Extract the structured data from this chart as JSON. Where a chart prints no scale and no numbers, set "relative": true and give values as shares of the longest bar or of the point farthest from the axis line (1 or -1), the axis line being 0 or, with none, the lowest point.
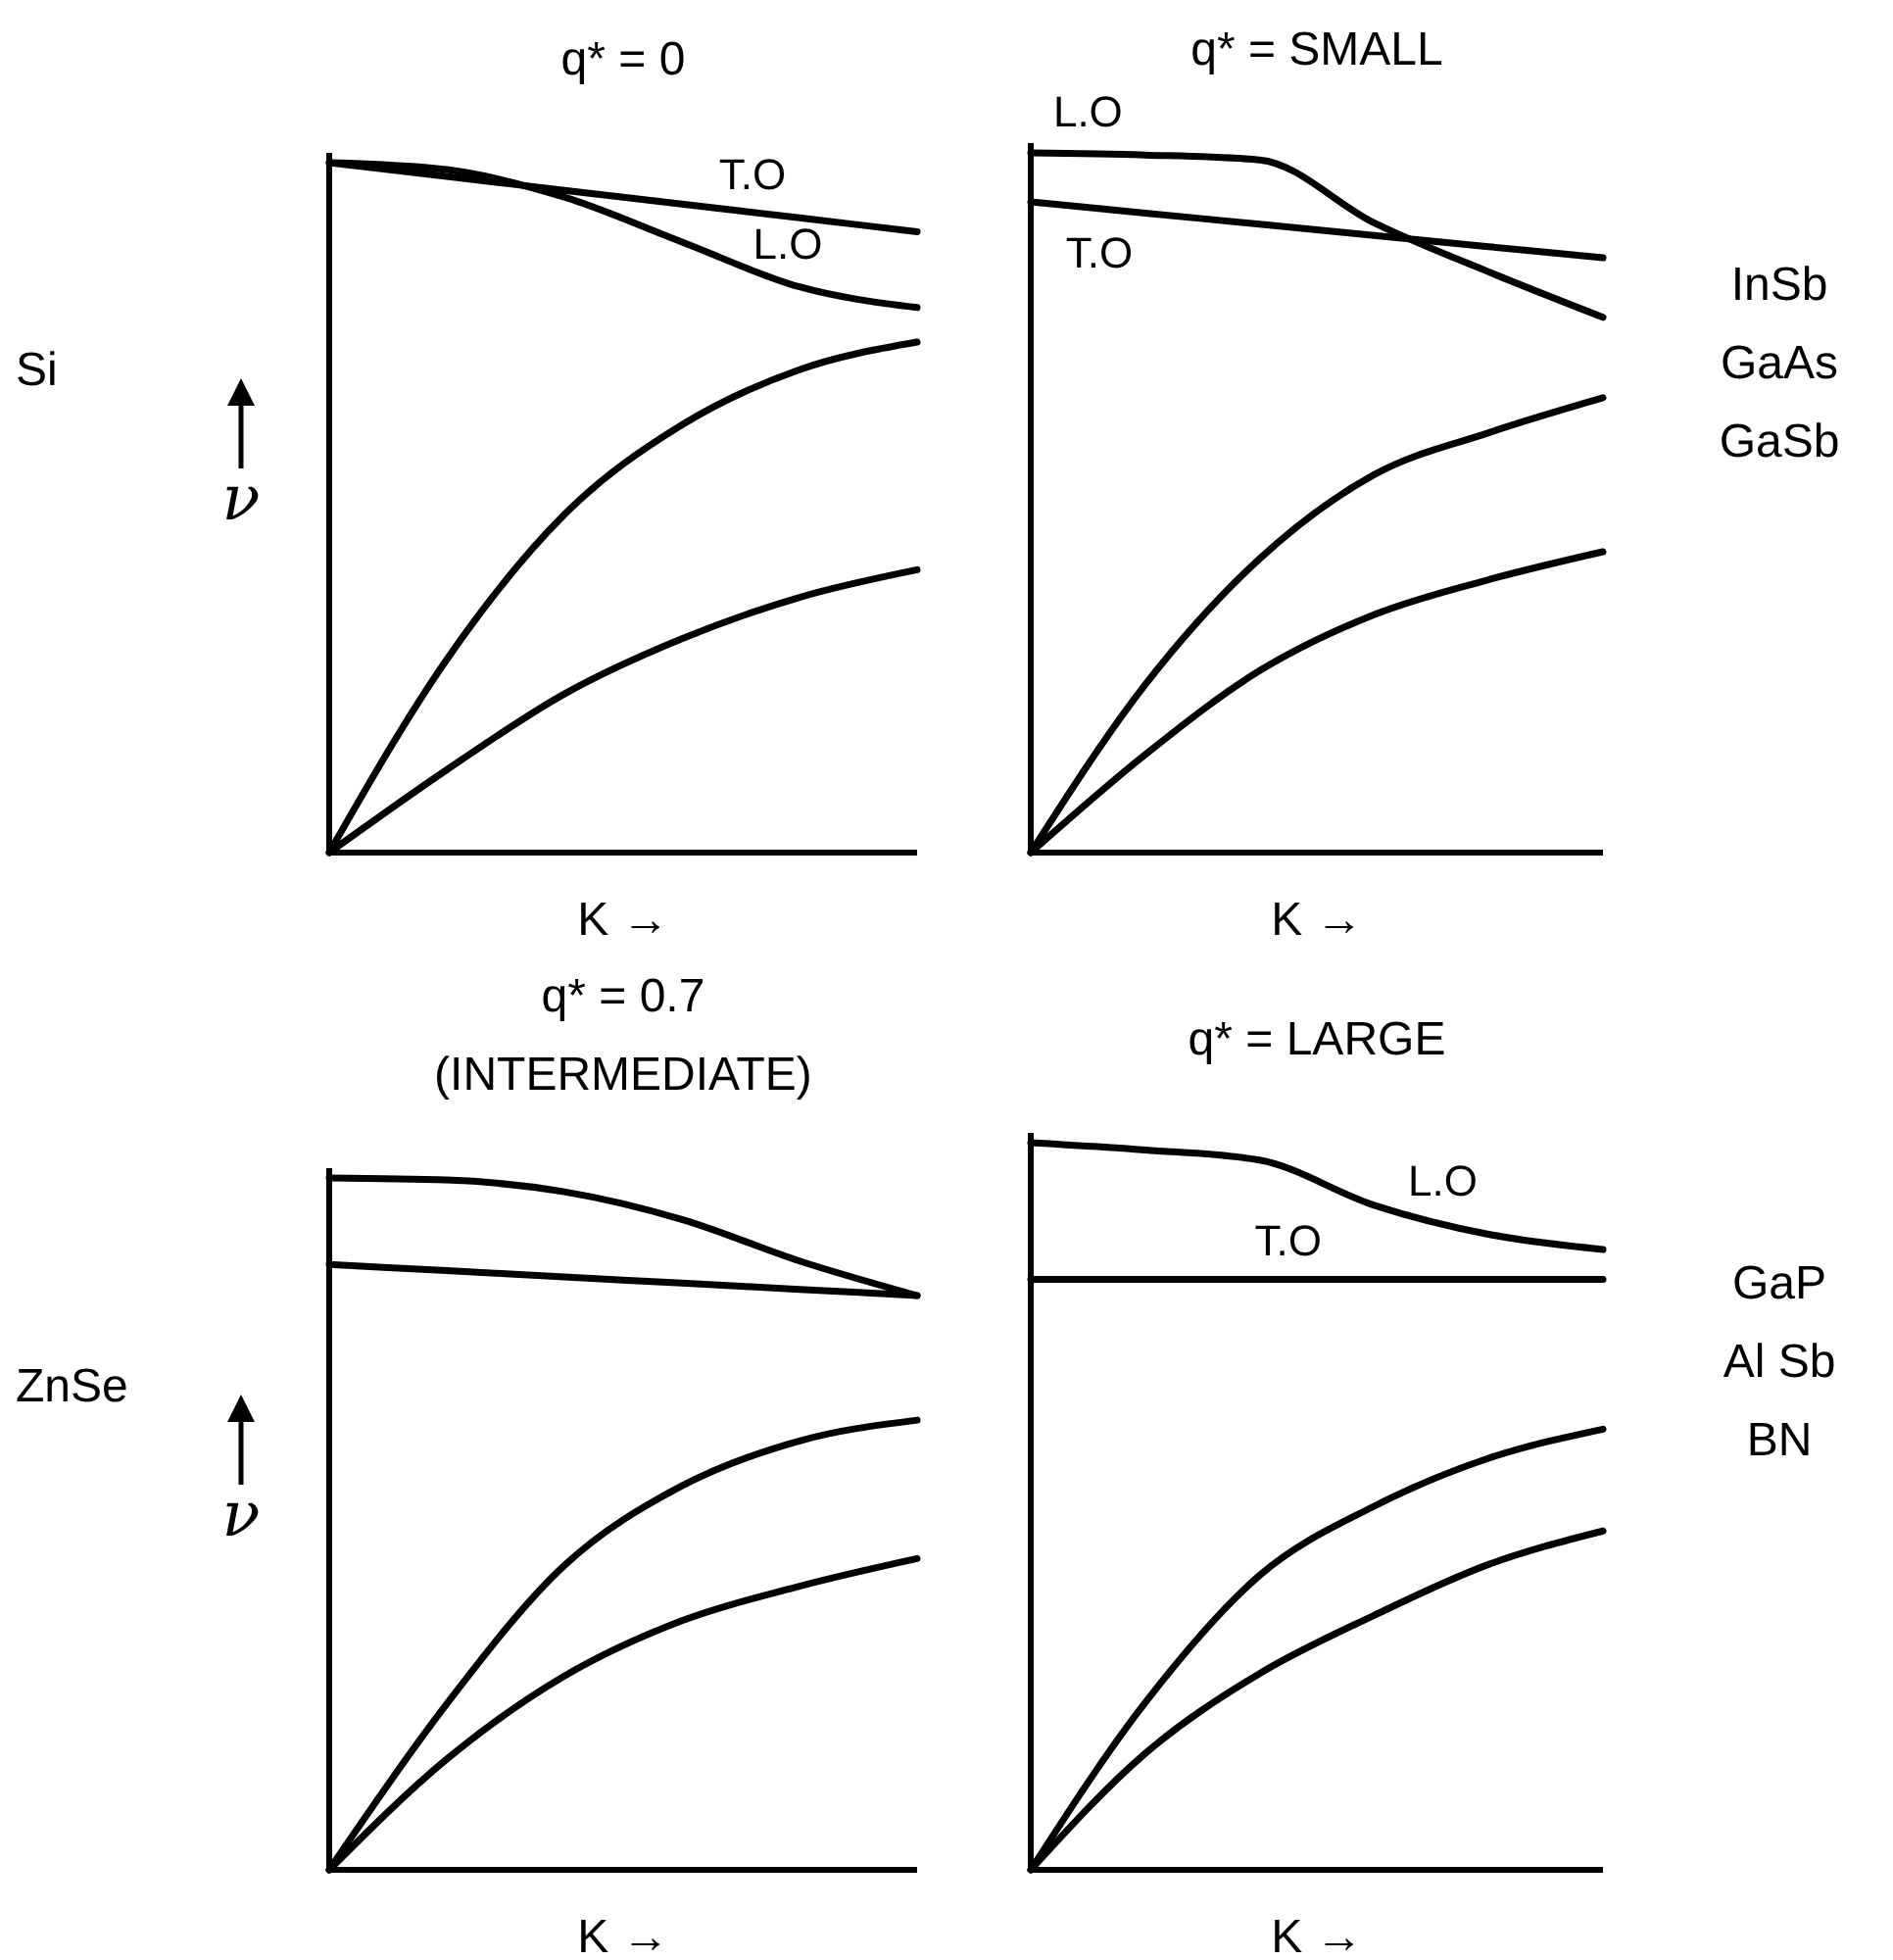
{
  "chart_data": [
    {
      "type": "line",
      "relative": true,
      "title": "q* = 0",
      "xlabel": "K →",
      "ylabel": "ν",
      "categories": [
        null,
        null,
        null,
        null,
        null,
        null
      ],
      "marker": "none",
      "line_style": "solid",
      "annotations": [
        "Si"
      ],
      "series": [
        {
          "name": "T.O",
          "color": "#000000",
          "values": [
            1.0,
            0.98,
            0.96,
            0.94,
            0.92,
            0.9
          ]
        },
        {
          "name": "L.O",
          "color": "#000000",
          "values": [
            1.0,
            0.99,
            0.95,
            0.885,
            0.82,
            0.79
          ]
        },
        {
          "color": "#000000",
          "values": [
            0,
            0.28,
            0.49,
            0.62,
            0.7,
            0.74
          ]
        },
        {
          "color": "#000000",
          "values": [
            0,
            0.12,
            0.23,
            0.31,
            0.37,
            0.41
          ]
        }
      ]
    },
    {
      "type": "line",
      "relative": true,
      "title": "q* = SMALL",
      "xlabel": "K →",
      "categories": [
        null,
        null,
        null,
        null,
        null,
        null
      ],
      "marker": "none",
      "line_style": "solid",
      "annotations": [
        "InSb",
        "GaAs",
        "GaSb"
      ],
      "series": [
        {
          "name": "L.O",
          "color": "#000000",
          "values": [
            1.0,
            0.997,
            0.99,
            0.9,
            0.83,
            0.765
          ]
        },
        {
          "name": "T.O",
          "color": "#000000",
          "values": [
            0.93,
            0.914,
            0.898,
            0.882,
            0.866,
            0.85
          ]
        },
        {
          "color": "#000000",
          "values": [
            0,
            0.24,
            0.42,
            0.54,
            0.6,
            0.65
          ]
        },
        {
          "color": "#000000",
          "values": [
            0,
            0.14,
            0.26,
            0.34,
            0.39,
            0.43
          ]
        }
      ]
    },
    {
      "type": "line",
      "relative": true,
      "title": "q* = 0.7",
      "subtitle": "(INTERMEDIATE)",
      "xlabel": "K →",
      "ylabel": "ν",
      "categories": [
        null,
        null,
        null,
        null,
        null,
        null
      ],
      "marker": "none",
      "line_style": "solid",
      "annotations": [
        "ZnSe"
      ],
      "series": [
        {
          "color": "#000000",
          "values": [
            1.0,
            0.997,
            0.98,
            0.94,
            0.88,
            0.83
          ]
        },
        {
          "color": "#000000",
          "values": [
            0.875,
            0.866,
            0.857,
            0.848,
            0.839,
            0.83
          ]
        },
        {
          "color": "#000000",
          "values": [
            0,
            0.24,
            0.44,
            0.555,
            0.62,
            0.65
          ]
        },
        {
          "color": "#000000",
          "values": [
            0,
            0.16,
            0.28,
            0.36,
            0.41,
            0.45
          ]
        }
      ]
    },
    {
      "type": "line",
      "relative": true,
      "title": "q* = LARGE",
      "xlabel": "K →",
      "categories": [
        null,
        null,
        null,
        null,
        null,
        null
      ],
      "marker": "none",
      "line_style": "solid",
      "annotations": [
        "GaP",
        "Al Sb",
        "BN"
      ],
      "series": [
        {
          "name": "L.O",
          "color": "#000000",
          "values": [
            1.0,
            0.99,
            0.976,
            0.914,
            0.874,
            0.853
          ]
        },
        {
          "name": "T.O",
          "color": "#000000",
          "values": [
            0.812,
            0.812,
            0.812,
            0.812,
            0.812,
            0.812
          ]
        },
        {
          "color": "#000000",
          "values": [
            0,
            0.23,
            0.405,
            0.5,
            0.566,
            0.606
          ]
        },
        {
          "color": "#000000",
          "values": [
            0,
            0.16,
            0.27,
            0.35,
            0.42,
            0.466
          ]
        }
      ]
    }
  ]
}
